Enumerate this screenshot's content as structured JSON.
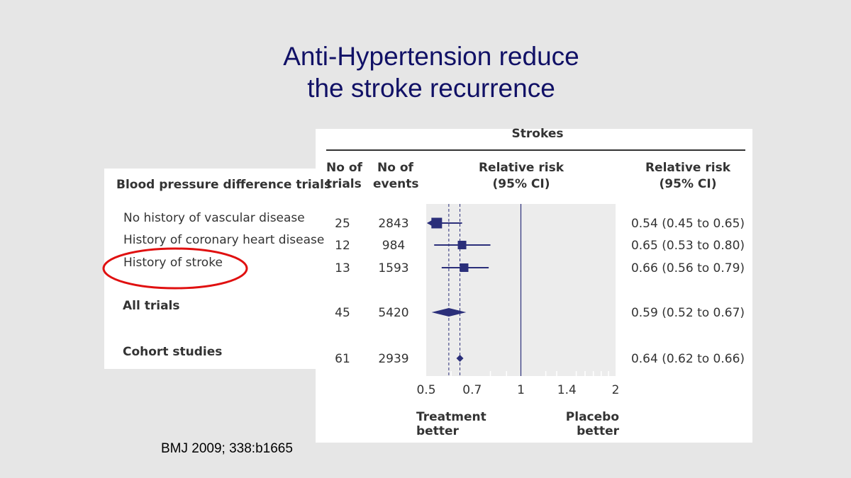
{
  "slide": {
    "title_line1": "Anti-Hypertension reduce",
    "title_line2": "the stroke recurrence",
    "citation": "BMJ 2009; 338:b1665"
  },
  "colors": {
    "marker": "#2b2f7a",
    "highlight_ellipse": "#e01010",
    "plot_background": "#ececec",
    "title": "#111166"
  },
  "chart_data": {
    "type": "forest",
    "section_header": "Strokes",
    "row_header": "Blood pressure difference trials",
    "columns": {
      "trials": [
        "No of",
        "trials"
      ],
      "events": [
        "No of",
        "events"
      ],
      "plot": [
        "Relative risk",
        "(95% CI)"
      ],
      "ci": [
        "Relative risk",
        "(95% CI)"
      ]
    },
    "rows": [
      {
        "label": "No history of vascular disease",
        "trials": "25",
        "events": "2843",
        "rr": 0.54,
        "lo": 0.45,
        "hi": 0.65,
        "ci_text": "0.54 (0.45 to 0.65)",
        "marker": "square",
        "bold": false,
        "highlight": false
      },
      {
        "label": "History of coronary heart disease",
        "trials": "12",
        "events": "984",
        "rr": 0.65,
        "lo": 0.53,
        "hi": 0.8,
        "ci_text": "0.65 (0.53 to 0.80)",
        "marker": "square",
        "bold": false,
        "highlight": false
      },
      {
        "label": "History of stroke",
        "trials": "13",
        "events": "1593",
        "rr": 0.66,
        "lo": 0.56,
        "hi": 0.79,
        "ci_text": "0.66 (0.56 to 0.79)",
        "marker": "square",
        "bold": false,
        "highlight": true
      },
      {
        "label": "All trials",
        "trials": "45",
        "events": "5420",
        "rr": 0.59,
        "lo": 0.52,
        "hi": 0.67,
        "ci_text": "0.59 (0.52 to 0.67)",
        "marker": "diamond",
        "bold": true,
        "highlight": false
      },
      {
        "label": "Cohort studies",
        "trials": "61",
        "events": "2939",
        "rr": 0.64,
        "lo": 0.62,
        "hi": 0.66,
        "ci_text": "0.64 (0.62 to 0.66)",
        "marker": "diamond",
        "bold": true,
        "highlight": false
      }
    ],
    "x_axis": {
      "scale": "log",
      "range": [
        0.5,
        2
      ],
      "tick_labels": [
        "0.5",
        "0.7",
        "1",
        "1.4",
        "2"
      ],
      "tick_values": [
        0.5,
        0.7,
        1,
        1.4,
        2
      ],
      "minor_ticks": [
        0.6,
        0.8,
        0.9,
        1.2,
        1.3,
        1.5,
        1.6,
        1.7,
        1.8,
        1.9
      ],
      "reference_line": 1,
      "dashed_lines": [
        0.59,
        0.64
      ]
    },
    "footer_left": [
      "Treatment",
      "better"
    ],
    "footer_right": [
      "Placebo",
      "better"
    ]
  }
}
